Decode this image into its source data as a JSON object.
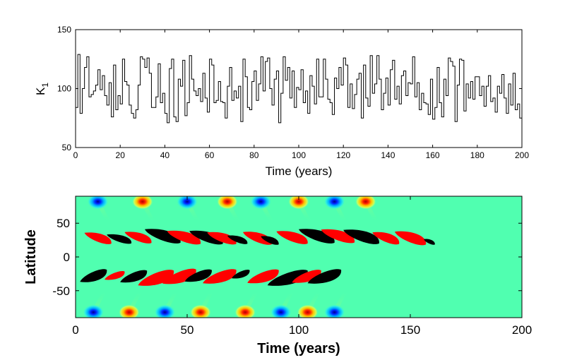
{
  "chart_data": [
    {
      "type": "line",
      "style": "step",
      "title": "",
      "xlabel": "Time (years)",
      "ylabel": "K",
      "ylabel_subscript": "1",
      "xlim": [
        0,
        200
      ],
      "ylim": [
        50,
        150
      ],
      "xticks": [
        "0",
        "20",
        "40",
        "60",
        "80",
        "100",
        "120",
        "140",
        "160",
        "180",
        "200"
      ],
      "yticks": [
        "50",
        "100",
        "150"
      ],
      "grid": false,
      "x": [
        0,
        1,
        2,
        3,
        4,
        5,
        6,
        7,
        8,
        9,
        10,
        11,
        12,
        13,
        14,
        15,
        16,
        17,
        18,
        19,
        20,
        21,
        22,
        23,
        24,
        25,
        26,
        27,
        28,
        29,
        30,
        31,
        32,
        33,
        34,
        35,
        36,
        37,
        38,
        39,
        40,
        41,
        42,
        43,
        44,
        45,
        46,
        47,
        48,
        49,
        50,
        51,
        52,
        53,
        54,
        55,
        56,
        57,
        58,
        59,
        60,
        61,
        62,
        63,
        64,
        65,
        66,
        67,
        68,
        69,
        70,
        71,
        72,
        73,
        74,
        75,
        76,
        77,
        78,
        79,
        80,
        81,
        82,
        83,
        84,
        85,
        86,
        87,
        88,
        89,
        90,
        91,
        92,
        93,
        94,
        95,
        96,
        97,
        98,
        99,
        100,
        101,
        102,
        103,
        104,
        105,
        106,
        107,
        108,
        109,
        110,
        111,
        112,
        113,
        114,
        115,
        116,
        117,
        118,
        119,
        120,
        121,
        122,
        123,
        124,
        125,
        126,
        127,
        128,
        129,
        130,
        131,
        132,
        133,
        134,
        135,
        136,
        137,
        138,
        139,
        140,
        141,
        142,
        143,
        144,
        145,
        146,
        147,
        148,
        149,
        150,
        151,
        152,
        153,
        154,
        155,
        156,
        157,
        158,
        159,
        160,
        161,
        162,
        163,
        164,
        165,
        166,
        167,
        168,
        169,
        170,
        171,
        172,
        173,
        174,
        175,
        176,
        177,
        178,
        179,
        180,
        181,
        182,
        183,
        184,
        185,
        186,
        187,
        188,
        189,
        190,
        191,
        192,
        193,
        194,
        195,
        196,
        197,
        198,
        199
      ],
      "values": [
        84,
        129,
        79,
        100,
        118,
        127,
        93,
        95,
        98,
        103,
        116,
        99,
        111,
        94,
        86,
        105,
        76,
        120,
        82,
        94,
        87,
        125,
        106,
        103,
        86,
        79,
        75,
        82,
        103,
        127,
        125,
        118,
        126,
        113,
        84,
        84,
        93,
        121,
        88,
        96,
        79,
        71,
        117,
        125,
        76,
        72,
        108,
        102,
        124,
        77,
        88,
        128,
        108,
        98,
        94,
        100,
        89,
        113,
        92,
        80,
        125,
        120,
        88,
        90,
        106,
        89,
        88,
        75,
        102,
        118,
        90,
        98,
        92,
        102,
        72,
        125,
        110,
        84,
        82,
        106,
        115,
        90,
        104,
        127,
        98,
        123,
        126,
        100,
        86,
        108,
        115,
        71,
        96,
        127,
        107,
        118,
        92,
        115,
        84,
        101,
        99,
        116,
        88,
        98,
        79,
        111,
        102,
        87,
        125,
        93,
        93,
        125,
        108,
        91,
        88,
        78,
        109,
        100,
        118,
        103,
        126,
        120,
        84,
        104,
        83,
        95,
        108,
        113,
        75,
        120,
        92,
        85,
        128,
        96,
        104,
        128,
        108,
        82,
        96,
        109,
        86,
        116,
        124,
        91,
        102,
        87,
        111,
        115,
        94,
        105,
        104,
        127,
        93,
        105,
        82,
        96,
        88,
        87,
        78,
        108,
        74,
        84,
        118,
        88,
        76,
        108,
        94,
        126,
        123,
        119,
        72,
        103,
        125,
        124,
        81,
        104,
        92,
        106,
        91,
        110,
        110,
        94,
        102,
        85,
        102,
        111,
        89,
        92,
        80,
        102,
        96,
        112,
        92,
        79,
        104,
        86,
        113,
        82,
        87,
        75
      ]
    },
    {
      "type": "heatmap",
      "title": "",
      "xlabel": "Time (years)",
      "ylabel": "Latitude",
      "xlim": [
        0,
        200
      ],
      "ylim": [
        -90,
        90
      ],
      "xticks": [
        "0",
        "50",
        "100",
        "150",
        "200"
      ],
      "yticks": [
        "50",
        "0",
        "-50"
      ],
      "background_color": "#50FFB0",
      "colors": {
        "positive": "#FF0000",
        "negative": "#000000"
      },
      "butterfly_wings": [
        {
          "t": 4,
          "lat": 27,
          "len": 12,
          "w": 16,
          "sign": "positive"
        },
        {
          "t": 14,
          "lat": 26,
          "len": 11,
          "w": 13,
          "sign": "negative"
        },
        {
          "t": 22,
          "lat": 28,
          "len": 12,
          "w": 16,
          "sign": "positive"
        },
        {
          "t": 31,
          "lat": 30,
          "len": 16,
          "w": 20,
          "sign": "negative"
        },
        {
          "t": 41,
          "lat": 28,
          "len": 15,
          "w": 19,
          "sign": "positive"
        },
        {
          "t": 51,
          "lat": 28,
          "len": 15,
          "w": 19,
          "sign": "negative"
        },
        {
          "t": 59,
          "lat": 27,
          "len": 13,
          "w": 17,
          "sign": "positive"
        },
        {
          "t": 68,
          "lat": 25,
          "len": 9,
          "w": 12,
          "sign": "negative"
        },
        {
          "t": 75,
          "lat": 27,
          "len": 13,
          "w": 18,
          "sign": "positive"
        },
        {
          "t": 83,
          "lat": 24,
          "len": 8,
          "w": 12,
          "sign": "negative"
        },
        {
          "t": 90,
          "lat": 28,
          "len": 14,
          "w": 18,
          "sign": "positive"
        },
        {
          "t": 100,
          "lat": 30,
          "len": 16,
          "w": 20,
          "sign": "negative"
        },
        {
          "t": 110,
          "lat": 30,
          "len": 15,
          "w": 19,
          "sign": "positive"
        },
        {
          "t": 120,
          "lat": 29,
          "len": 16,
          "w": 20,
          "sign": "negative"
        },
        {
          "t": 133,
          "lat": 27,
          "len": 12,
          "w": 17,
          "sign": "positive"
        },
        {
          "t": 143,
          "lat": 27,
          "len": 14,
          "w": 19,
          "sign": "positive"
        },
        {
          "t": 156,
          "lat": 22,
          "len": 5,
          "w": 8,
          "sign": "negative"
        },
        {
          "t": 2,
          "lat": -27,
          "len": 12,
          "w": 18,
          "sign": "negative"
        },
        {
          "t": 13,
          "lat": -27,
          "len": 9,
          "w": 12,
          "sign": "positive"
        },
        {
          "t": 20,
          "lat": -28,
          "len": 12,
          "w": 17,
          "sign": "negative"
        },
        {
          "t": 28,
          "lat": -30,
          "len": 16,
          "w": 22,
          "sign": "positive"
        },
        {
          "t": 39,
          "lat": -28,
          "len": 15,
          "w": 21,
          "sign": "positive"
        },
        {
          "t": 49,
          "lat": -27,
          "len": 12,
          "w": 17,
          "sign": "negative"
        },
        {
          "t": 57,
          "lat": -28,
          "len": 15,
          "w": 20,
          "sign": "positive"
        },
        {
          "t": 70,
          "lat": -25,
          "len": 8,
          "w": 12,
          "sign": "negative"
        },
        {
          "t": 77,
          "lat": -28,
          "len": 14,
          "w": 19,
          "sign": "positive"
        },
        {
          "t": 86,
          "lat": -30,
          "len": 18,
          "w": 22,
          "sign": "negative"
        },
        {
          "t": 97,
          "lat": -28,
          "len": 13,
          "w": 18,
          "sign": "positive"
        },
        {
          "t": 104,
          "lat": -28,
          "len": 15,
          "w": 20,
          "sign": "negative"
        }
      ],
      "polar_bands": [
        {
          "t": 10,
          "lat": 82,
          "sign": "negative"
        },
        {
          "t": 30,
          "lat": 82,
          "sign": "positive"
        },
        {
          "t": 50,
          "lat": 82,
          "sign": "negative"
        },
        {
          "t": 68,
          "lat": 82,
          "sign": "positive"
        },
        {
          "t": 83,
          "lat": 82,
          "sign": "negative"
        },
        {
          "t": 100,
          "lat": 82,
          "sign": "positive"
        },
        {
          "t": 116,
          "lat": 82,
          "sign": "negative"
        },
        {
          "t": 130,
          "lat": 82,
          "sign": "positive"
        },
        {
          "t": 8,
          "lat": -82,
          "sign": "negative"
        },
        {
          "t": 24,
          "lat": -82,
          "sign": "positive"
        },
        {
          "t": 40,
          "lat": -82,
          "sign": "negative"
        },
        {
          "t": 56,
          "lat": -82,
          "sign": "positive"
        },
        {
          "t": 76,
          "lat": -82,
          "sign": "positive"
        },
        {
          "t": 92,
          "lat": -82,
          "sign": "negative"
        },
        {
          "t": 104,
          "lat": -82,
          "sign": "positive"
        },
        {
          "t": 116,
          "lat": -82,
          "sign": "negative"
        }
      ]
    }
  ]
}
